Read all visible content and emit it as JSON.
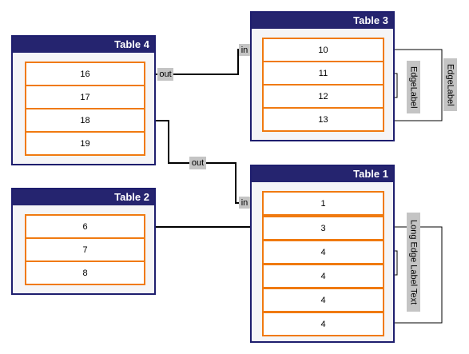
{
  "tables": {
    "t4": {
      "title": "Table 4",
      "rows": [
        "16",
        "17",
        "18",
        "19"
      ]
    },
    "t3": {
      "title": "Table 3",
      "rows": [
        "10",
        "11",
        "12",
        "13"
      ]
    },
    "t2": {
      "title": "Table 2",
      "rows": [
        "6",
        "7",
        "8"
      ]
    },
    "t1": {
      "title": "Table 1",
      "rows": [
        "1",
        "3",
        "4",
        "4",
        "4",
        "4"
      ]
    }
  },
  "edge_labels": {
    "out_top": "out",
    "in_top": "in",
    "out_mid": "out",
    "in_mid": "in",
    "edge_inner": "EdgeLabel",
    "edge_outer": "EdgeLabel",
    "long_edge": "Long Edge Label Text"
  },
  "colors": {
    "header": "#25246f",
    "row_border": "#f07a10",
    "label_bg": "#c4c4c4"
  }
}
